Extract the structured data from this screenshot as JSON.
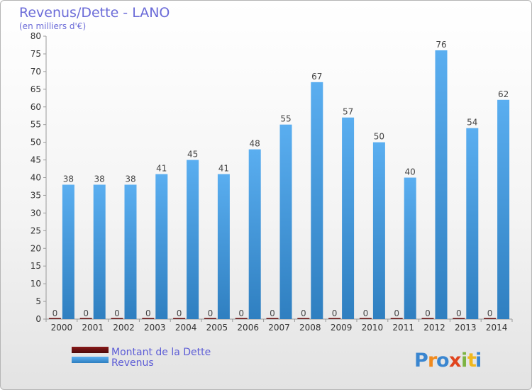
{
  "chart_data": {
    "type": "bar",
    "title": "Revenus/Dette - LANO",
    "subtitle": "(en milliers d'€)",
    "categories": [
      "2000",
      "2001",
      "2002",
      "2003",
      "2004",
      "2005",
      "2006",
      "2007",
      "2008",
      "2009",
      "2010",
      "2011",
      "2012",
      "2013",
      "2014"
    ],
    "series": [
      {
        "name": "Montant de la Dette",
        "color": "#6b0f0f",
        "values": [
          0,
          0,
          0,
          0,
          0,
          0,
          0,
          0,
          0,
          0,
          0,
          0,
          0,
          0,
          0
        ]
      },
      {
        "name": "Revenus",
        "color": "#4fa3e3",
        "values": [
          38,
          38,
          38,
          41,
          45,
          41,
          48,
          55,
          67,
          57,
          50,
          40,
          76,
          54,
          62
        ]
      }
    ],
    "ylim": [
      0,
      80
    ],
    "yticks": [
      0,
      5,
      10,
      15,
      20,
      25,
      30,
      35,
      40,
      45,
      50,
      55,
      60,
      65,
      70,
      75,
      80
    ],
    "grid": false,
    "legend_position": "bottom-left"
  },
  "branding": {
    "logo_letters": [
      "P",
      "r",
      "o",
      "x",
      "i",
      "t",
      "i"
    ],
    "logo_colors": [
      "#3a86d0",
      "#f08a1e",
      "#3a86d0",
      "#e0441e",
      "#7cb342",
      "#f0b81e",
      "#3a86d0"
    ]
  }
}
